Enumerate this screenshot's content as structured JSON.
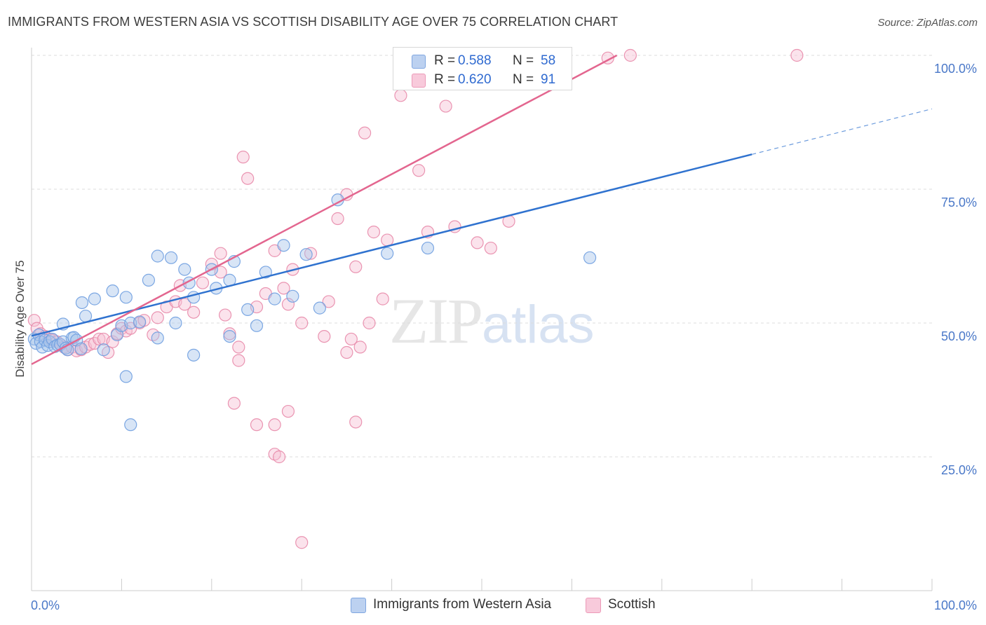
{
  "header": {
    "title": "IMMIGRANTS FROM WESTERN ASIA VS SCOTTISH DISABILITY AGE OVER 75 CORRELATION CHART",
    "source": "Source: ZipAtlas.com"
  },
  "watermark": {
    "zip": "ZIP",
    "atlas": "atlas"
  },
  "legend": {
    "rows": [
      {
        "r_label": "R =",
        "r_value": "0.588",
        "n_label": "N =",
        "n_value": "58",
        "color": "#9fbde8"
      },
      {
        "r_label": "R =",
        "r_value": "0.620",
        "n_label": "N =",
        "n_value": "91",
        "color": "#f4b3c8"
      }
    ]
  },
  "bottom_legend": {
    "items": [
      {
        "label": "Immigrants from Western Asia",
        "color": "#9fbde8"
      },
      {
        "label": "Scottish",
        "color": "#f4b3c8"
      }
    ]
  },
  "chart_data": {
    "type": "scatter",
    "title": "IMMIGRANTS FROM WESTERN ASIA VS SCOTTISH DISABILITY AGE OVER 75 CORRELATION CHART",
    "ylabel": "Disability Age Over 75",
    "xlabel": "",
    "xlim": [
      0,
      100
    ],
    "ylim": [
      0,
      100
    ],
    "x_tick_labels": [
      "0.0%",
      "100.0%"
    ],
    "y_tick_labels": [
      "25.0%",
      "50.0%",
      "75.0%",
      "100.0%"
    ],
    "y_ticks": [
      25,
      50,
      75,
      100
    ],
    "grid": true,
    "series": [
      {
        "name": "Immigrants from Western Asia",
        "color": "#6f9ee0",
        "fill": "#a9c5ec",
        "trend": {
          "x0": 0,
          "y0": 47.6,
          "x1": 80,
          "y1": 81.5,
          "dashed_to_x": 100,
          "dashed_to_y": 90.0,
          "color": "#2f72cf"
        },
        "points": [
          [
            0.3,
            47.0
          ],
          [
            0.5,
            46.2
          ],
          [
            0.8,
            47.8
          ],
          [
            1.0,
            46.5
          ],
          [
            1.2,
            45.5
          ],
          [
            1.5,
            46.8
          ],
          [
            1.8,
            45.8
          ],
          [
            2.0,
            46.5
          ],
          [
            2.3,
            47.0
          ],
          [
            2.6,
            45.6
          ],
          [
            2.9,
            45.9
          ],
          [
            3.2,
            46.0
          ],
          [
            3.5,
            46.5
          ],
          [
            3.8,
            45.3
          ],
          [
            4.0,
            45.0
          ],
          [
            4.5,
            47.2
          ],
          [
            4.7,
            47.3
          ],
          [
            5.0,
            46.8
          ],
          [
            5.6,
            53.8
          ],
          [
            6.0,
            51.3
          ],
          [
            5.5,
            45.2
          ],
          [
            3.5,
            49.8
          ],
          [
            7.0,
            54.5
          ],
          [
            8.0,
            45.0
          ],
          [
            9.0,
            56.0
          ],
          [
            9.5,
            47.8
          ],
          [
            10.0,
            49.5
          ],
          [
            10.5,
            54.8
          ],
          [
            11.0,
            50.0
          ],
          [
            12.0,
            50.2
          ],
          [
            13.0,
            58.0
          ],
          [
            14.0,
            62.5
          ],
          [
            15.5,
            62.2
          ],
          [
            17.0,
            60.0
          ],
          [
            17.5,
            57.5
          ],
          [
            18.0,
            54.8
          ],
          [
            20.0,
            60.0
          ],
          [
            20.5,
            56.5
          ],
          [
            22.0,
            58.0
          ],
          [
            22.5,
            61.5
          ],
          [
            24.0,
            52.5
          ],
          [
            25.0,
            49.5
          ],
          [
            26.0,
            59.5
          ],
          [
            27.0,
            54.5
          ],
          [
            28.0,
            64.5
          ],
          [
            29.0,
            55.0
          ],
          [
            30.5,
            62.8
          ],
          [
            32.0,
            52.8
          ],
          [
            34.0,
            73.0
          ],
          [
            39.5,
            63.0
          ],
          [
            44.0,
            64.0
          ],
          [
            62.0,
            62.2
          ],
          [
            11.0,
            31.0
          ],
          [
            10.5,
            40.0
          ],
          [
            14.0,
            47.2
          ],
          [
            16.0,
            50.0
          ],
          [
            18.0,
            44.0
          ],
          [
            22.0,
            47.5
          ]
        ]
      },
      {
        "name": "Scottish",
        "color": "#e889aa",
        "fill": "#f6c2d4",
        "trend": {
          "x0": 0,
          "y0": 42.3,
          "x1": 65,
          "y1": 100,
          "color": "#e3668f"
        },
        "points": [
          [
            0.3,
            50.5
          ],
          [
            0.6,
            49.0
          ],
          [
            1.0,
            48.0
          ],
          [
            1.5,
            47.5
          ],
          [
            2.0,
            47.0
          ],
          [
            2.4,
            46.8
          ],
          [
            2.8,
            46.5
          ],
          [
            3.2,
            46.0
          ],
          [
            3.6,
            45.5
          ],
          [
            4.0,
            45.0
          ],
          [
            4.5,
            45.5
          ],
          [
            5.0,
            44.8
          ],
          [
            5.5,
            45.0
          ],
          [
            6.0,
            45.5
          ],
          [
            6.5,
            46.0
          ],
          [
            7.0,
            46.2
          ],
          [
            7.5,
            47.0
          ],
          [
            8.0,
            47.0
          ],
          [
            8.5,
            44.5
          ],
          [
            9.0,
            46.5
          ],
          [
            9.5,
            48.0
          ],
          [
            10.0,
            49.0
          ],
          [
            10.5,
            48.5
          ],
          [
            11.0,
            49.0
          ],
          [
            12.0,
            50.0
          ],
          [
            12.5,
            50.5
          ],
          [
            13.5,
            47.8
          ],
          [
            14.0,
            51.0
          ],
          [
            15.0,
            53.0
          ],
          [
            16.0,
            54.0
          ],
          [
            16.5,
            57.0
          ],
          [
            17.0,
            53.5
          ],
          [
            18.0,
            52.0
          ],
          [
            19.0,
            57.5
          ],
          [
            20.0,
            61.0
          ],
          [
            21.0,
            59.5
          ],
          [
            21.5,
            51.5
          ],
          [
            22.0,
            48.0
          ],
          [
            23.0,
            43.0
          ],
          [
            24.0,
            77.0
          ],
          [
            23.5,
            81.0
          ],
          [
            25.0,
            53.0
          ],
          [
            26.0,
            55.5
          ],
          [
            27.0,
            63.5
          ],
          [
            28.0,
            56.5
          ],
          [
            28.5,
            53.5
          ],
          [
            29.0,
            60.0
          ],
          [
            30.0,
            50.0
          ],
          [
            31.0,
            63.0
          ],
          [
            33.0,
            54.0
          ],
          [
            34.0,
            69.5
          ],
          [
            35.0,
            74.0
          ],
          [
            36.0,
            60.5
          ],
          [
            37.0,
            85.5
          ],
          [
            37.5,
            50.0
          ],
          [
            38.0,
            67.0
          ],
          [
            39.5,
            65.5
          ],
          [
            41.0,
            92.5
          ],
          [
            42.0,
            95.0
          ],
          [
            43.0,
            78.5
          ],
          [
            44.0,
            67.0
          ],
          [
            46.0,
            90.5
          ],
          [
            47.0,
            100.0
          ],
          [
            49.0,
            100.0
          ],
          [
            50.0,
            100.0
          ],
          [
            51.0,
            64.0
          ],
          [
            53.0,
            69.0
          ],
          [
            54.0,
            100.0
          ],
          [
            57.5,
            100.0
          ],
          [
            58.0,
            100.0
          ],
          [
            59.0,
            100.0
          ],
          [
            64.0,
            99.5
          ],
          [
            66.5,
            100.0
          ],
          [
            85.0,
            100.0
          ],
          [
            23.0,
            45.5
          ],
          [
            21.0,
            63.0
          ],
          [
            22.5,
            35.0
          ],
          [
            25.0,
            31.0
          ],
          [
            27.0,
            31.0
          ],
          [
            28.5,
            33.5
          ],
          [
            27.0,
            25.5
          ],
          [
            27.5,
            25.0
          ],
          [
            30.0,
            9.0
          ],
          [
            32.5,
            47.5
          ],
          [
            35.0,
            44.5
          ],
          [
            35.5,
            47.0
          ],
          [
            36.0,
            31.5
          ],
          [
            36.5,
            45.5
          ],
          [
            39.0,
            54.5
          ],
          [
            47.0,
            68.0
          ],
          [
            49.5,
            65.0
          ]
        ]
      }
    ]
  }
}
